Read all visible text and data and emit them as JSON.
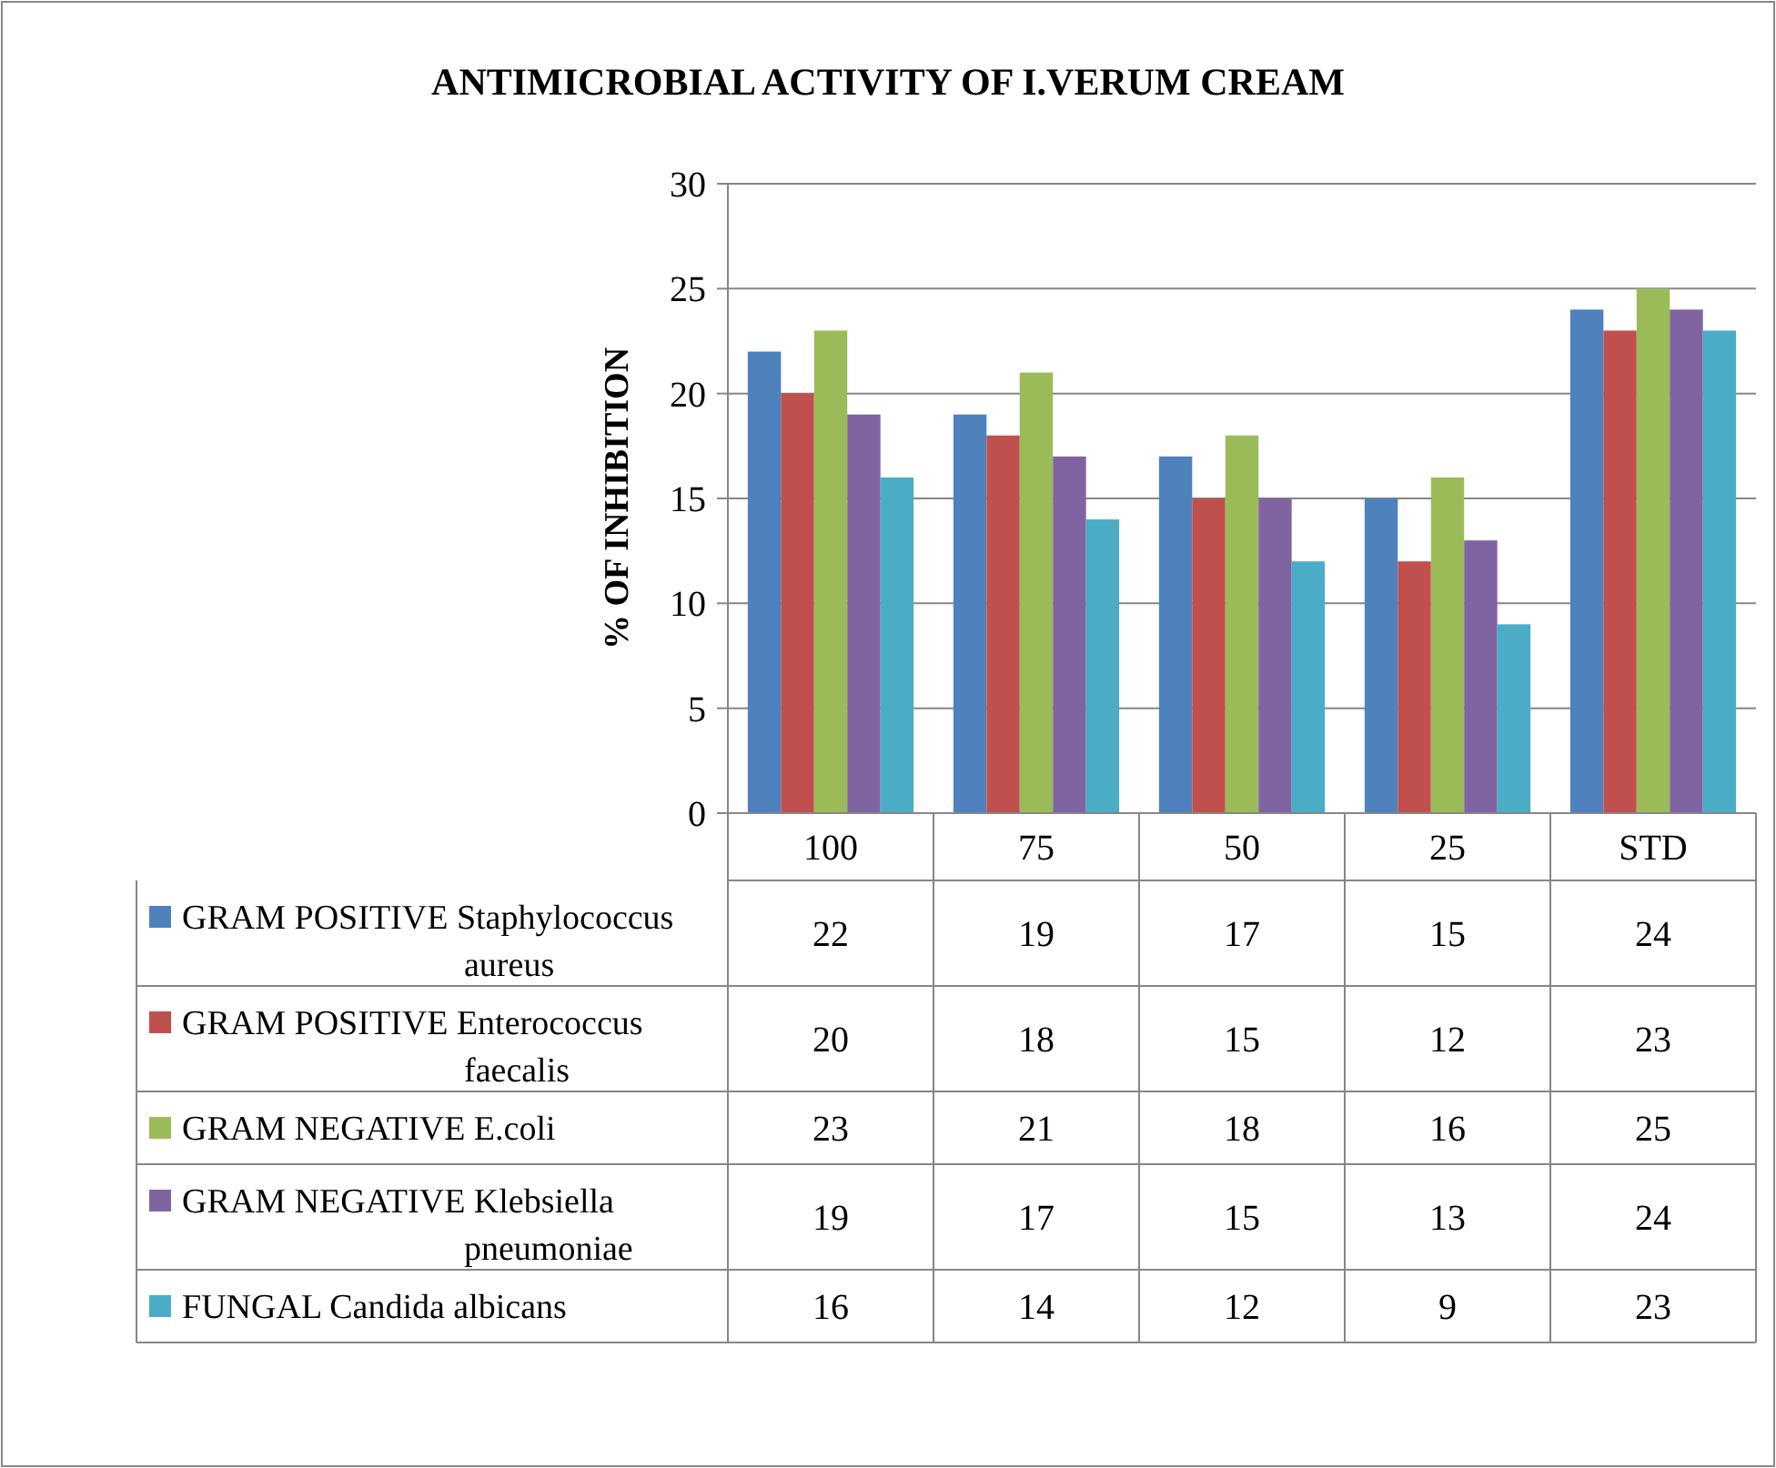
{
  "chart_data": {
    "type": "bar",
    "title": "ANTIMICROBIAL ACTIVITY OF I.VERUM CREAM",
    "ylabel": "% OF INHIBITION",
    "categories": [
      "100",
      "75",
      "50",
      "25",
      "STD"
    ],
    "series": [
      {
        "name": "GRAM POSITIVE Staphylococcus aureus",
        "color": "#4f81bd",
        "values": [
          22,
          19,
          17,
          15,
          24
        ]
      },
      {
        "name": "GRAM POSITIVE Enterococcus faecalis",
        "color": "#c0504d",
        "values": [
          20,
          18,
          15,
          12,
          23
        ]
      },
      {
        "name": "GRAM NEGATIVE E.coli",
        "color": "#9bbb59",
        "values": [
          23,
          21,
          18,
          16,
          25
        ]
      },
      {
        "name": "GRAM NEGATIVE Klebsiella pneumoniae",
        "color": "#8064a2",
        "values": [
          19,
          17,
          15,
          13,
          24
        ]
      },
      {
        "name": "FUNGAL Candida albicans",
        "color": "#4bacc6",
        "values": [
          16,
          14,
          12,
          9,
          23
        ]
      }
    ],
    "ylim": [
      0,
      30
    ],
    "yticks": [
      0,
      5,
      10,
      15,
      20,
      25,
      30
    ],
    "grid": "y",
    "legend": "bottom",
    "data_labels": true
  }
}
